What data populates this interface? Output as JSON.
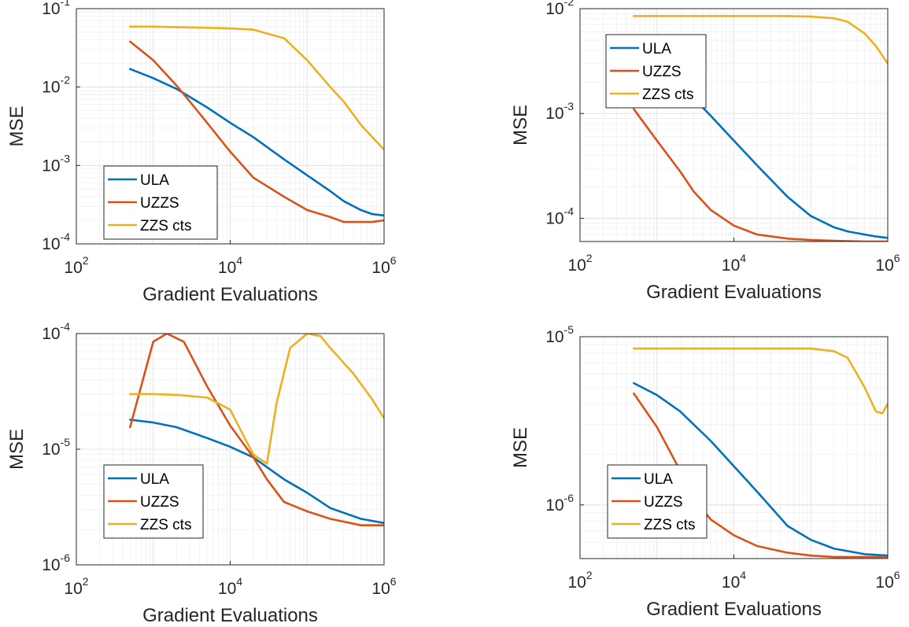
{
  "colors": {
    "ULA": "#0072BD",
    "UZZS": "#D95319",
    "ZZS cts": "#EDB120",
    "grid_major": "#dcdcdc",
    "grid_minor": "#efefef",
    "axis": "#262626"
  },
  "chart_data": [
    {
      "type": "line",
      "xscale": "log",
      "yscale": "log",
      "xlim": [
        100,
        1000000
      ],
      "ylim": [
        0.0001,
        0.1
      ],
      "xticks": [
        100,
        10000,
        1000000
      ],
      "yticks": [
        0.0001,
        0.001,
        0.01,
        0.1
      ],
      "xticklabels": [
        {
          "base": "10",
          "exp": "2"
        },
        {
          "base": "10",
          "exp": "4"
        },
        {
          "base": "10",
          "exp": "6"
        }
      ],
      "yticklabels": [
        {
          "base": "10",
          "exp": "-4"
        },
        {
          "base": "10",
          "exp": "-3"
        },
        {
          "base": "10",
          "exp": "-2"
        },
        {
          "base": "10",
          "exp": "-1"
        }
      ],
      "xlabel": "Gradient Evaluations",
      "ylabel": "MSE",
      "grid": true,
      "legend": "bottom-left",
      "series": [
        {
          "name": "ULA",
          "x": [
            500,
            1000,
            2000,
            5000,
            10000,
            20000,
            50000,
            100000,
            200000,
            300000,
            500000,
            700000,
            1000000
          ],
          "y": [
            0.017,
            0.013,
            0.0095,
            0.0055,
            0.0035,
            0.0023,
            0.0012,
            0.00075,
            0.00047,
            0.00035,
            0.00027,
            0.00024,
            0.00023
          ]
        },
        {
          "name": "UZZS",
          "x": [
            500,
            1000,
            2000,
            3000,
            5000,
            10000,
            20000,
            50000,
            100000,
            200000,
            300000,
            500000,
            700000,
            1000000
          ],
          "y": [
            0.038,
            0.022,
            0.0105,
            0.0065,
            0.0035,
            0.0015,
            0.0007,
            0.0004,
            0.00027,
            0.00022,
            0.00019,
            0.00019,
            0.00019,
            0.0002
          ]
        },
        {
          "name": "ZZS cts",
          "x": [
            500,
            1000,
            2000,
            5000,
            10000,
            20000,
            50000,
            100000,
            200000,
            300000,
            500000,
            700000,
            1000000
          ],
          "y": [
            0.059,
            0.059,
            0.058,
            0.057,
            0.056,
            0.054,
            0.042,
            0.022,
            0.01,
            0.0065,
            0.0033,
            0.0023,
            0.0016
          ]
        }
      ]
    },
    {
      "type": "line",
      "xscale": "log",
      "yscale": "log",
      "xlim": [
        100,
        1000000
      ],
      "ylim": [
        6e-05,
        0.01
      ],
      "xticks": [
        100,
        10000,
        1000000
      ],
      "yticks": [
        0.0001,
        0.001,
        0.01
      ],
      "xticklabels": [
        {
          "base": "10",
          "exp": "2"
        },
        {
          "base": "10",
          "exp": "4"
        },
        {
          "base": "10",
          "exp": "6"
        }
      ],
      "yticklabels": [
        {
          "base": "10",
          "exp": "-4"
        },
        {
          "base": "10",
          "exp": "-3"
        },
        {
          "base": "10",
          "exp": "-2"
        }
      ],
      "xlabel": "Gradient Evaluations",
      "ylabel": "MSE",
      "grid": true,
      "legend": "top-left",
      "series": [
        {
          "name": "ULA",
          "x": [
            2000,
            3000,
            5000,
            10000,
            20000,
            50000,
            100000,
            200000,
            300000,
            500000,
            700000,
            1000000
          ],
          "y": [
            0.0017,
            0.0014,
            0.00095,
            0.00055,
            0.00032,
            0.00016,
            0.000105,
            8.2e-05,
            7.5e-05,
            7e-05,
            6.7e-05,
            6.5e-05
          ]
        },
        {
          "name": "UZZS",
          "x": [
            500,
            1000,
            2000,
            3000,
            5000,
            10000,
            20000,
            50000,
            100000,
            200000,
            500000,
            1000000
          ],
          "y": [
            0.0011,
            0.00055,
            0.00028,
            0.00018,
            0.00012,
            8.5e-05,
            7e-05,
            6.4e-05,
            6.2e-05,
            6.1e-05,
            6e-05,
            6e-05
          ]
        },
        {
          "name": "ZZS cts",
          "x": [
            500,
            1000,
            5000,
            10000,
            50000,
            100000,
            200000,
            300000,
            500000,
            700000,
            1000000
          ],
          "y": [
            0.0085,
            0.0085,
            0.0085,
            0.0085,
            0.0085,
            0.0084,
            0.0081,
            0.0075,
            0.0058,
            0.0044,
            0.003
          ]
        }
      ]
    },
    {
      "type": "line",
      "xscale": "log",
      "yscale": "log",
      "xlim": [
        100,
        1000000
      ],
      "ylim": [
        1e-06,
        0.0001
      ],
      "xticks": [
        100,
        10000,
        1000000
      ],
      "yticks": [
        1e-06,
        1e-05,
        0.0001
      ],
      "xticklabels": [
        {
          "base": "10",
          "exp": "2"
        },
        {
          "base": "10",
          "exp": "4"
        },
        {
          "base": "10",
          "exp": "6"
        }
      ],
      "yticklabels": [
        {
          "base": "10",
          "exp": "-6"
        },
        {
          "base": "10",
          "exp": "-5"
        },
        {
          "base": "10",
          "exp": "-4"
        }
      ],
      "xlabel": "Gradient Evaluations",
      "ylabel": "MSE",
      "grid": true,
      "legend": "bottom-left",
      "series": [
        {
          "name": "ULA",
          "x": [
            500,
            1000,
            2000,
            5000,
            10000,
            20000,
            50000,
            100000,
            200000,
            500000,
            1000000
          ],
          "y": [
            1.8e-05,
            1.7e-05,
            1.55e-05,
            1.25e-05,
            1.05e-05,
            8.5e-06,
            5.5e-06,
            4.2e-06,
            3.1e-06,
            2.5e-06,
            2.3e-06
          ]
        },
        {
          "name": "UZZS",
          "x": [
            500,
            1000,
            1500,
            2500,
            5000,
            10000,
            20000,
            30000,
            50000,
            100000,
            200000,
            500000,
            1000000
          ],
          "y": [
            1.55e-05,
            8.5e-05,
            0.0001,
            8.5e-05,
            3.5e-05,
            1.6e-05,
            8.5e-06,
            5.5e-06,
            3.5e-06,
            2.9e-06,
            2.5e-06,
            2.2e-06,
            2.2e-06
          ]
        },
        {
          "name": "ZZS cts",
          "x": [
            500,
            1000,
            2000,
            5000,
            10000,
            15000,
            20000,
            30000,
            40000,
            60000,
            100000,
            150000,
            200000,
            400000,
            700000,
            1000000
          ],
          "y": [
            3e-05,
            3e-05,
            2.95e-05,
            2.8e-05,
            2.2e-05,
            1.3e-05,
            9e-06,
            7.5e-06,
            2.5e-05,
            7.5e-05,
            0.0001,
            9.5e-05,
            7.5e-05,
            4.5e-05,
            2.7e-05,
            1.85e-05
          ]
        }
      ]
    },
    {
      "type": "line",
      "xscale": "log",
      "yscale": "log",
      "xlim": [
        100,
        1000000
      ],
      "ylim": [
        4.8e-07,
        1e-05
      ],
      "xticks": [
        100,
        10000,
        1000000
      ],
      "yticks": [
        1e-06,
        1e-05
      ],
      "xticklabels": [
        {
          "base": "10",
          "exp": "2"
        },
        {
          "base": "10",
          "exp": "4"
        },
        {
          "base": "10",
          "exp": "6"
        }
      ],
      "yticklabels": [
        {
          "base": "10",
          "exp": "-6"
        },
        {
          "base": "10",
          "exp": "-5"
        }
      ],
      "xlabel": "Gradient Evaluations",
      "ylabel": "MSE",
      "grid": true,
      "legend": "bottom-left",
      "series": [
        {
          "name": "ULA",
          "x": [
            500,
            1000,
            2000,
            5000,
            10000,
            20000,
            50000,
            100000,
            200000,
            500000,
            1000000
          ],
          "y": [
            5.3e-06,
            4.5e-06,
            3.6e-06,
            2.4e-06,
            1.7e-06,
            1.2e-06,
            7.5e-07,
            6.2e-07,
            5.5e-07,
            5.1e-07,
            5e-07
          ]
        },
        {
          "name": "UZZS",
          "x": [
            500,
            1000,
            2000,
            3000,
            5000,
            10000,
            20000,
            50000,
            100000,
            200000,
            500000,
            1000000
          ],
          "y": [
            4.6e-06,
            2.9e-06,
            1.6e-06,
            1.1e-06,
            8.2e-07,
            6.6e-07,
            5.7e-07,
            5.2e-07,
            5e-07,
            4.9e-07,
            4.9e-07,
            4.9e-07
          ]
        },
        {
          "name": "ZZS cts",
          "x": [
            500,
            1000,
            5000,
            10000,
            50000,
            100000,
            200000,
            300000,
            500000,
            700000,
            850000,
            1000000
          ],
          "y": [
            8.5e-06,
            8.5e-06,
            8.5e-06,
            8.5e-06,
            8.5e-06,
            8.5e-06,
            8.2e-06,
            7.5e-06,
            5e-06,
            3.6e-06,
            3.5e-06,
            4e-06
          ]
        }
      ]
    }
  ]
}
